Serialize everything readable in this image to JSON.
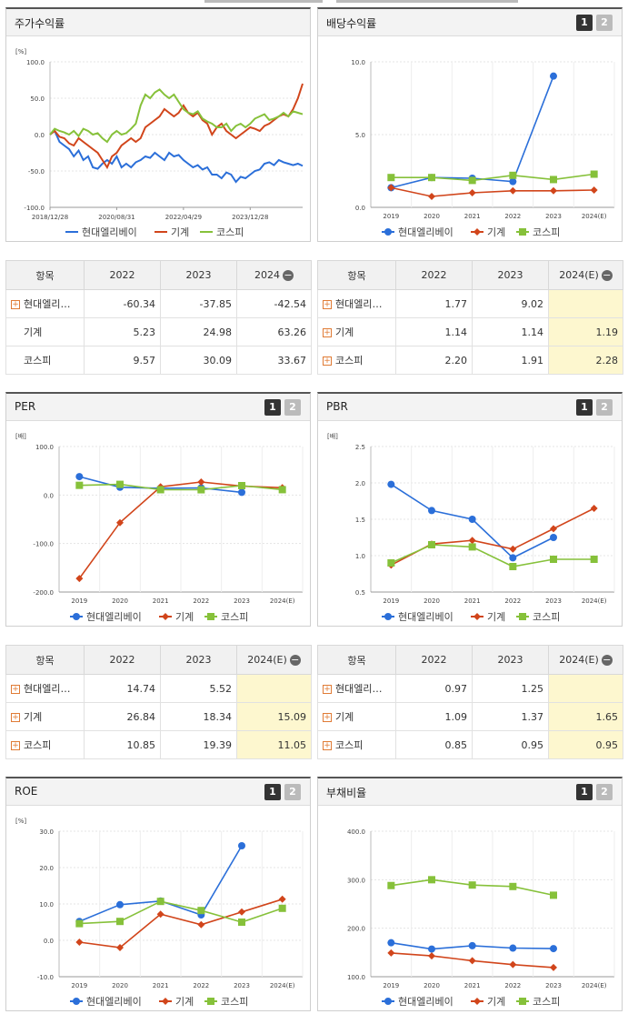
{
  "legend": [
    "현대엘리베이",
    "기계",
    "코스피"
  ],
  "colors": {
    "s1": "#2b6fd9",
    "s2": "#d1451b",
    "s3": "#86c13a"
  },
  "charts": [
    {
      "id": "c1",
      "title": "주가수익률",
      "unit": "[%]",
      "type": "line",
      "btns": false,
      "ylim": [
        -100,
        100
      ],
      "yticks": [
        "100.0",
        "50.0",
        "0.0",
        "-50.0",
        "-100.0"
      ],
      "xticks": [
        "2018/12/28",
        "2020/08/31",
        "2022/04/29",
        "2023/12/28"
      ],
      "series": [
        {
          "name": "현대엘리베이",
          "values": [
            0,
            5,
            -10,
            -15,
            -20,
            -30,
            -22,
            -35,
            -30,
            -45,
            -47,
            -40,
            -35,
            -40,
            -30,
            -45,
            -40,
            -45,
            -38,
            -35,
            -30,
            -32,
            -25,
            -30,
            -35,
            -25,
            -30,
            -28,
            -35,
            -40,
            -45,
            -42,
            -48,
            -45,
            -55,
            -55,
            -60,
            -52,
            -55,
            -65,
            -58,
            -60,
            -55,
            -50,
            -48,
            -40,
            -38,
            -42,
            -35,
            -38,
            -40,
            -42,
            -40,
            -43
          ]
        },
        {
          "name": "기계",
          "values": [
            0,
            5,
            -3,
            -5,
            -12,
            -15,
            -5,
            -10,
            -15,
            -20,
            -25,
            -35,
            -45,
            -30,
            -25,
            -15,
            -10,
            -5,
            -10,
            -5,
            10,
            15,
            20,
            25,
            35,
            30,
            25,
            30,
            40,
            30,
            25,
            30,
            20,
            15,
            0,
            10,
            15,
            5,
            0,
            -5,
            0,
            5,
            10,
            8,
            5,
            12,
            15,
            20,
            25,
            28,
            25,
            35,
            50,
            70
          ]
        },
        {
          "name": "코스피",
          "values": [
            0,
            8,
            5,
            3,
            0,
            5,
            -2,
            8,
            5,
            0,
            2,
            -5,
            -10,
            0,
            5,
            0,
            2,
            8,
            15,
            40,
            55,
            50,
            58,
            62,
            55,
            50,
            55,
            45,
            35,
            30,
            28,
            32,
            22,
            18,
            15,
            10,
            10,
            15,
            5,
            12,
            15,
            10,
            15,
            22,
            25,
            28,
            20,
            22,
            25,
            30,
            25,
            32,
            30,
            28
          ]
        }
      ]
    },
    {
      "id": "c2",
      "title": "배당수익률",
      "unit": "",
      "type": "line",
      "btns": true,
      "ylim": [
        0,
        10
      ],
      "yticks": [
        "10.0",
        "5.0",
        "0.0"
      ],
      "xticks": [
        "2019",
        "2020",
        "2021",
        "2022",
        "2023",
        "2024(E)"
      ],
      "series": [
        {
          "name": "현대엘리베이",
          "values": [
            1.35,
            2.05,
            2.0,
            1.77,
            9.02,
            null
          ]
        },
        {
          "name": "기계",
          "values": [
            1.35,
            0.75,
            1.0,
            1.14,
            1.14,
            1.19
          ]
        },
        {
          "name": "코스피",
          "values": [
            2.05,
            2.05,
            1.85,
            2.2,
            1.91,
            2.28
          ]
        }
      ]
    },
    {
      "id": "c3",
      "title": "PER",
      "unit": "[배]",
      "type": "line",
      "btns": true,
      "ylim": [
        -200,
        100
      ],
      "yticks": [
        "100.0",
        "0.0",
        "-100.0",
        "-200.0"
      ],
      "xticks": [
        "2019",
        "2020",
        "2021",
        "2022",
        "2023",
        "2024(E)"
      ],
      "series": [
        {
          "name": "현대엘리베이",
          "values": [
            38,
            16,
            14,
            14.74,
            5.52,
            null
          ]
        },
        {
          "name": "기계",
          "values": [
            -172,
            -57,
            17,
            26.84,
            18.34,
            15.09
          ]
        },
        {
          "name": "코스피",
          "values": [
            20,
            22,
            11,
            10.85,
            19.39,
            11.05
          ]
        }
      ]
    },
    {
      "id": "c4",
      "title": "PBR",
      "unit": "[배]",
      "type": "line",
      "btns": true,
      "ylim": [
        0.5,
        2.5
      ],
      "yticks": [
        "2.5",
        "2.0",
        "1.5",
        "1.0",
        "0.5"
      ],
      "xticks": [
        "2019",
        "2020",
        "2021",
        "2022",
        "2023",
        "2024(E)"
      ],
      "series": [
        {
          "name": "현대엘리베이",
          "values": [
            1.98,
            1.62,
            1.5,
            0.97,
            1.25,
            null
          ]
        },
        {
          "name": "기계",
          "values": [
            0.87,
            1.16,
            1.21,
            1.09,
            1.37,
            1.65
          ]
        },
        {
          "name": "코스피",
          "values": [
            0.9,
            1.15,
            1.12,
            0.85,
            0.95,
            0.95
          ]
        }
      ]
    },
    {
      "id": "c5",
      "title": "ROE",
      "unit": "[%]",
      "type": "line",
      "btns": true,
      "ylim": [
        -10,
        30
      ],
      "yticks": [
        "30.0",
        "20.0",
        "10.0",
        "0.0",
        "-10.0"
      ],
      "xticks": [
        "2019",
        "2020",
        "2021",
        "2022",
        "2023",
        "2024(E)"
      ],
      "series": [
        {
          "name": "현대엘리베이",
          "values": [
            5.2,
            9.8,
            10.8,
            7,
            26,
            null
          ]
        },
        {
          "name": "기계",
          "values": [
            -0.5,
            -2,
            7.2,
            4.3,
            7.8,
            11.3
          ]
        },
        {
          "name": "코스피",
          "values": [
            4.6,
            5.2,
            10.7,
            8.2,
            5,
            8.8
          ]
        }
      ]
    },
    {
      "id": "c6",
      "title": "부채비율",
      "unit": "",
      "type": "line",
      "btns": true,
      "ylim": [
        100,
        400
      ],
      "yticks": [
        "400.0",
        "300.0",
        "200.0",
        "100.0"
      ],
      "xticks": [
        "2019",
        "2020",
        "2021",
        "2022",
        "2023",
        "2024(E)"
      ],
      "series": [
        {
          "name": "현대엘리베이",
          "values": [
            170,
            157,
            164,
            159,
            158,
            null
          ]
        },
        {
          "name": "기계",
          "values": [
            149,
            143,
            133,
            125,
            119,
            null
          ]
        },
        {
          "name": "코스피",
          "values": [
            288,
            300,
            289,
            286,
            268,
            null
          ]
        }
      ]
    }
  ],
  "tables": [
    {
      "id": "t1",
      "header": [
        "항목",
        "2022",
        "2023",
        "2024"
      ],
      "rows": [
        {
          "name": "현대엘리…",
          "plus": true,
          "v": [
            "-60.34",
            "-37.85",
            "-42.54"
          ]
        },
        {
          "name": "기계",
          "plus": false,
          "v": [
            "5.23",
            "24.98",
            "63.26"
          ]
        },
        {
          "name": "코스피",
          "plus": false,
          "v": [
            "9.57",
            "30.09",
            "33.67"
          ]
        }
      ],
      "hl": false
    },
    {
      "id": "t2",
      "header": [
        "항목",
        "2022",
        "2023",
        "2024(E)"
      ],
      "rows": [
        {
          "name": "현대엘리…",
          "plus": true,
          "v": [
            "1.77",
            "9.02",
            ""
          ]
        },
        {
          "name": "기계",
          "plus": true,
          "v": [
            "1.14",
            "1.14",
            "1.19"
          ]
        },
        {
          "name": "코스피",
          "plus": true,
          "v": [
            "2.20",
            "1.91",
            "2.28"
          ]
        }
      ],
      "hl": true
    },
    {
      "id": "t3",
      "header": [
        "항목",
        "2022",
        "2023",
        "2024(E)"
      ],
      "rows": [
        {
          "name": "현대엘리…",
          "plus": true,
          "v": [
            "14.74",
            "5.52",
            ""
          ]
        },
        {
          "name": "기계",
          "plus": true,
          "v": [
            "26.84",
            "18.34",
            "15.09"
          ]
        },
        {
          "name": "코스피",
          "plus": true,
          "v": [
            "10.85",
            "19.39",
            "11.05"
          ]
        }
      ],
      "hl": true
    },
    {
      "id": "t4",
      "header": [
        "항목",
        "2022",
        "2023",
        "2024(E)"
      ],
      "rows": [
        {
          "name": "현대엘리…",
          "plus": true,
          "v": [
            "0.97",
            "1.25",
            ""
          ]
        },
        {
          "name": "기계",
          "plus": true,
          "v": [
            "1.09",
            "1.37",
            "1.65"
          ]
        },
        {
          "name": "코스피",
          "plus": true,
          "v": [
            "0.85",
            "0.95",
            "0.95"
          ]
        }
      ],
      "hl": true
    }
  ],
  "btn_labels": [
    "1",
    "2"
  ]
}
